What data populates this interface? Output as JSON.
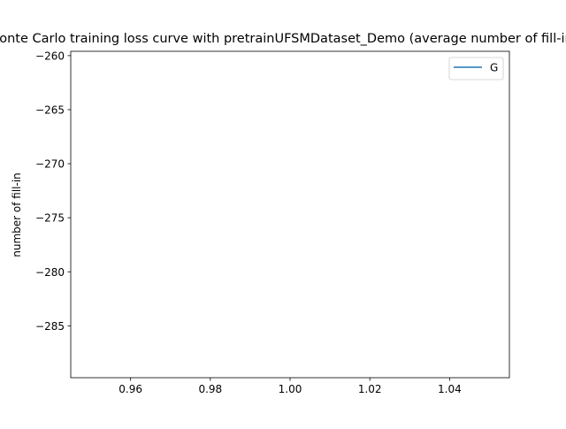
{
  "chart_data": {
    "type": "line",
    "title": "Monte Carlo training loss curve with pretrainUFSMDataset_Demo (average number of fill-in)",
    "xlabel": "",
    "ylabel": "number of fill-in",
    "xlim": [
      0.945,
      1.055
    ],
    "ylim": [
      -289.8,
      -259.6
    ],
    "x_ticks": [
      0.96,
      0.98,
      1.0,
      1.02,
      1.04
    ],
    "x_tick_labels": [
      "0.96",
      "0.98",
      "1.00",
      "1.02",
      "1.04"
    ],
    "y_ticks": [
      -260,
      -265,
      -270,
      -275,
      -280,
      -285
    ],
    "y_tick_labels": [
      "−260",
      "−265",
      "−270",
      "−275",
      "−280",
      "−285"
    ],
    "series": [
      {
        "name": "G",
        "color": "#1f77b4",
        "x": [],
        "y": []
      }
    ],
    "legend": {
      "placement": "top-right"
    },
    "grid": false
  }
}
